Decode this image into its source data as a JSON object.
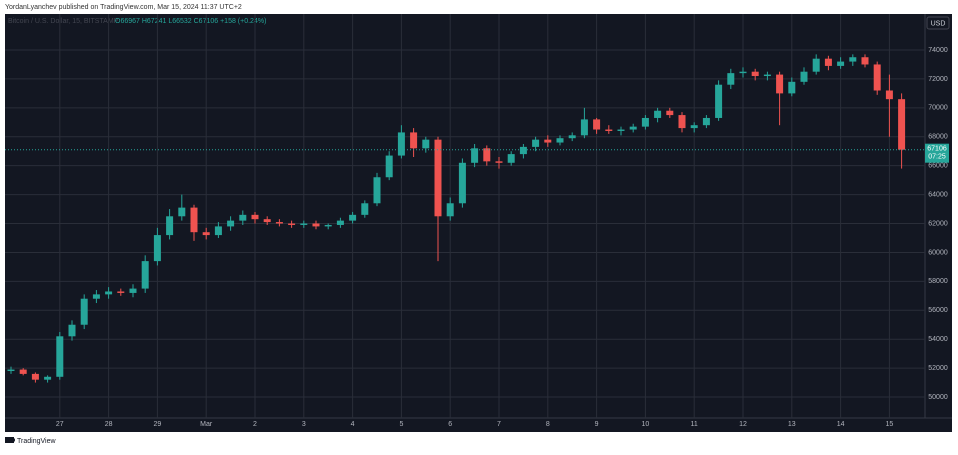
{
  "header": "YordanLyanchev published on TradingView.com, Mar 15, 2024 11:37 UTC+2",
  "footer": "TradingView",
  "chart_data": {
    "type": "candlestick",
    "legend_symbol": "Bitcoin / U.S. Dollar, 15, BITSTAMP",
    "legend_values": "O66967 H67241 L66532 C67106 +158 (+0.24%)",
    "currency": "USD",
    "countdown": "07:25",
    "categories": [
      null,
      null,
      null,
      null,
      "27",
      null,
      null,
      null,
      "28",
      null,
      null,
      null,
      "29",
      null,
      null,
      null,
      "Mar",
      null,
      null,
      null,
      "2",
      null,
      null,
      null,
      "3",
      null,
      null,
      null,
      "4",
      null,
      null,
      null,
      "5",
      null,
      null,
      null,
      "6",
      null,
      null,
      null,
      "7",
      null,
      null,
      null,
      "8",
      null,
      null,
      null,
      "9",
      null,
      null,
      null,
      "10",
      null,
      null,
      null,
      "11",
      null,
      null,
      null,
      "12",
      null,
      null,
      null,
      "13",
      null,
      null,
      null,
      "14",
      null,
      null,
      null,
      "15",
      null
    ],
    "open": [
      51800,
      51900,
      51600,
      51200,
      51400,
      54200,
      55000,
      56800,
      57100,
      57300,
      57200,
      57500,
      59400,
      61200,
      62500,
      63100,
      61400,
      61200,
      61800,
      62200,
      62600,
      62300,
      62100,
      62000,
      61900,
      62000,
      61800,
      61900,
      62200,
      62600,
      63400,
      65200,
      66700,
      68300,
      67200,
      67800,
      62500,
      63400,
      66200,
      67200,
      66300,
      66200,
      66800,
      67300,
      67800,
      67600,
      67900,
      68100,
      69200,
      68500,
      68400,
      68500,
      68700,
      69300,
      69800,
      69500,
      68600,
      68800,
      69300,
      71600,
      72400,
      72500,
      72200,
      72300,
      71000,
      71800,
      72500,
      73400,
      72900,
      73200,
      73500,
      73000,
      71200,
      70600
    ],
    "high": [
      52100,
      52000,
      51700,
      51500,
      54500,
      55300,
      57100,
      57400,
      57600,
      57500,
      57800,
      59800,
      61700,
      63000,
      64000,
      63300,
      61700,
      62100,
      62500,
      62900,
      62800,
      62500,
      62300,
      62200,
      62200,
      62200,
      62000,
      62400,
      62800,
      63600,
      65500,
      67000,
      68800,
      68600,
      68000,
      68000,
      63800,
      66500,
      67500,
      67400,
      66600,
      67000,
      67500,
      68000,
      68100,
      68100,
      68300,
      70000,
      69300,
      68800,
      68700,
      68900,
      69500,
      70000,
      70000,
      69700,
      69000,
      69500,
      71900,
      72700,
      72800,
      72700,
      72500,
      72500,
      72100,
      72800,
      73700,
      73600,
      73500,
      73700,
      73700,
      73200,
      72300,
      71000
    ],
    "low": [
      51600,
      51500,
      51000,
      51000,
      51200,
      53900,
      54700,
      56500,
      56800,
      57000,
      56900,
      57200,
      59100,
      60900,
      62200,
      60800,
      60900,
      61000,
      61500,
      61900,
      62000,
      61900,
      61800,
      61700,
      61700,
      61600,
      61600,
      61700,
      62000,
      62400,
      63200,
      65000,
      66500,
      66600,
      66900,
      59400,
      62200,
      63100,
      65900,
      66000,
      65800,
      66000,
      66500,
      67000,
      67300,
      67400,
      67700,
      67900,
      68200,
      68200,
      68100,
      68300,
      68500,
      69000,
      69300,
      68300,
      68300,
      68600,
      69100,
      71300,
      72100,
      71900,
      71900,
      68800,
      70800,
      71600,
      72300,
      72600,
      72700,
      72900,
      72800,
      70900,
      68000,
      65800
    ],
    "close": [
      51900,
      51600,
      51200,
      51400,
      54200,
      55000,
      56800,
      57100,
      57300,
      57200,
      57500,
      59400,
      61200,
      62500,
      63100,
      61400,
      61200,
      61800,
      62200,
      62600,
      62300,
      62100,
      62000,
      61900,
      62000,
      61800,
      61900,
      62200,
      62600,
      63400,
      65200,
      66700,
      68300,
      67200,
      67800,
      62500,
      63400,
      66200,
      67200,
      66300,
      66200,
      66800,
      67300,
      67800,
      67600,
      67900,
      68100,
      69200,
      68500,
      68400,
      68500,
      68700,
      69300,
      69800,
      69500,
      68600,
      68800,
      69300,
      71600,
      72400,
      72500,
      72200,
      72300,
      71000,
      71800,
      72500,
      73400,
      72900,
      73200,
      73500,
      73000,
      71200,
      70600,
      67106
    ],
    "up_color": "#26a69a",
    "down_color": "#ef5350",
    "ylim": [
      48550,
      76490
    ],
    "yticks": [
      50000,
      52000,
      54000,
      56000,
      58000,
      60000,
      62000,
      64000,
      66000,
      68000,
      70000,
      72000,
      74000
    ],
    "grid": true
  }
}
